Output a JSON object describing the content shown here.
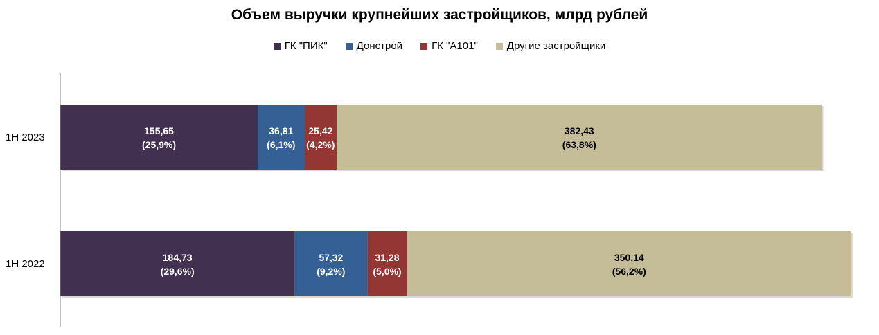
{
  "chart_data": {
    "type": "bar",
    "orientation": "horizontal",
    "stacked": true,
    "title": "Объем выручки крупнейших застройщиков, млрд рублей",
    "categories": [
      "1H 2023",
      "1H 2022"
    ],
    "series": [
      {
        "name": "ГК \"ПИК\"",
        "color": "#41304f",
        "label_color": "#ffffff",
        "values": [
          155.65,
          184.73
        ],
        "labels": [
          "155,65",
          "184,73"
        ],
        "shares": [
          "(25,9%)",
          "(29,6%)"
        ]
      },
      {
        "name": "Донстрой",
        "color": "#356095",
        "label_color": "#ffffff",
        "values": [
          36.81,
          57.32
        ],
        "labels": [
          "36,81",
          "57,32"
        ],
        "shares": [
          "(6,1%)",
          "(9,2%)"
        ]
      },
      {
        "name": "ГК \"А101\"",
        "color": "#943634",
        "label_color": "#ffffff",
        "values": [
          25.42,
          31.28
        ],
        "labels": [
          "25,42",
          "31,28"
        ],
        "shares": [
          "(4,2%)",
          "(5,0%)"
        ]
      },
      {
        "name": "Другие застройщики",
        "color": "#c4bd97",
        "label_color": "#000000",
        "values": [
          382.43,
          350.14
        ],
        "labels": [
          "382,43",
          "350,14"
        ],
        "shares": [
          "(63,8%)",
          "(56,2%)"
        ]
      }
    ],
    "xlim": [
      0,
      623.49
    ],
    "legend_position": "top",
    "grid": false
  }
}
